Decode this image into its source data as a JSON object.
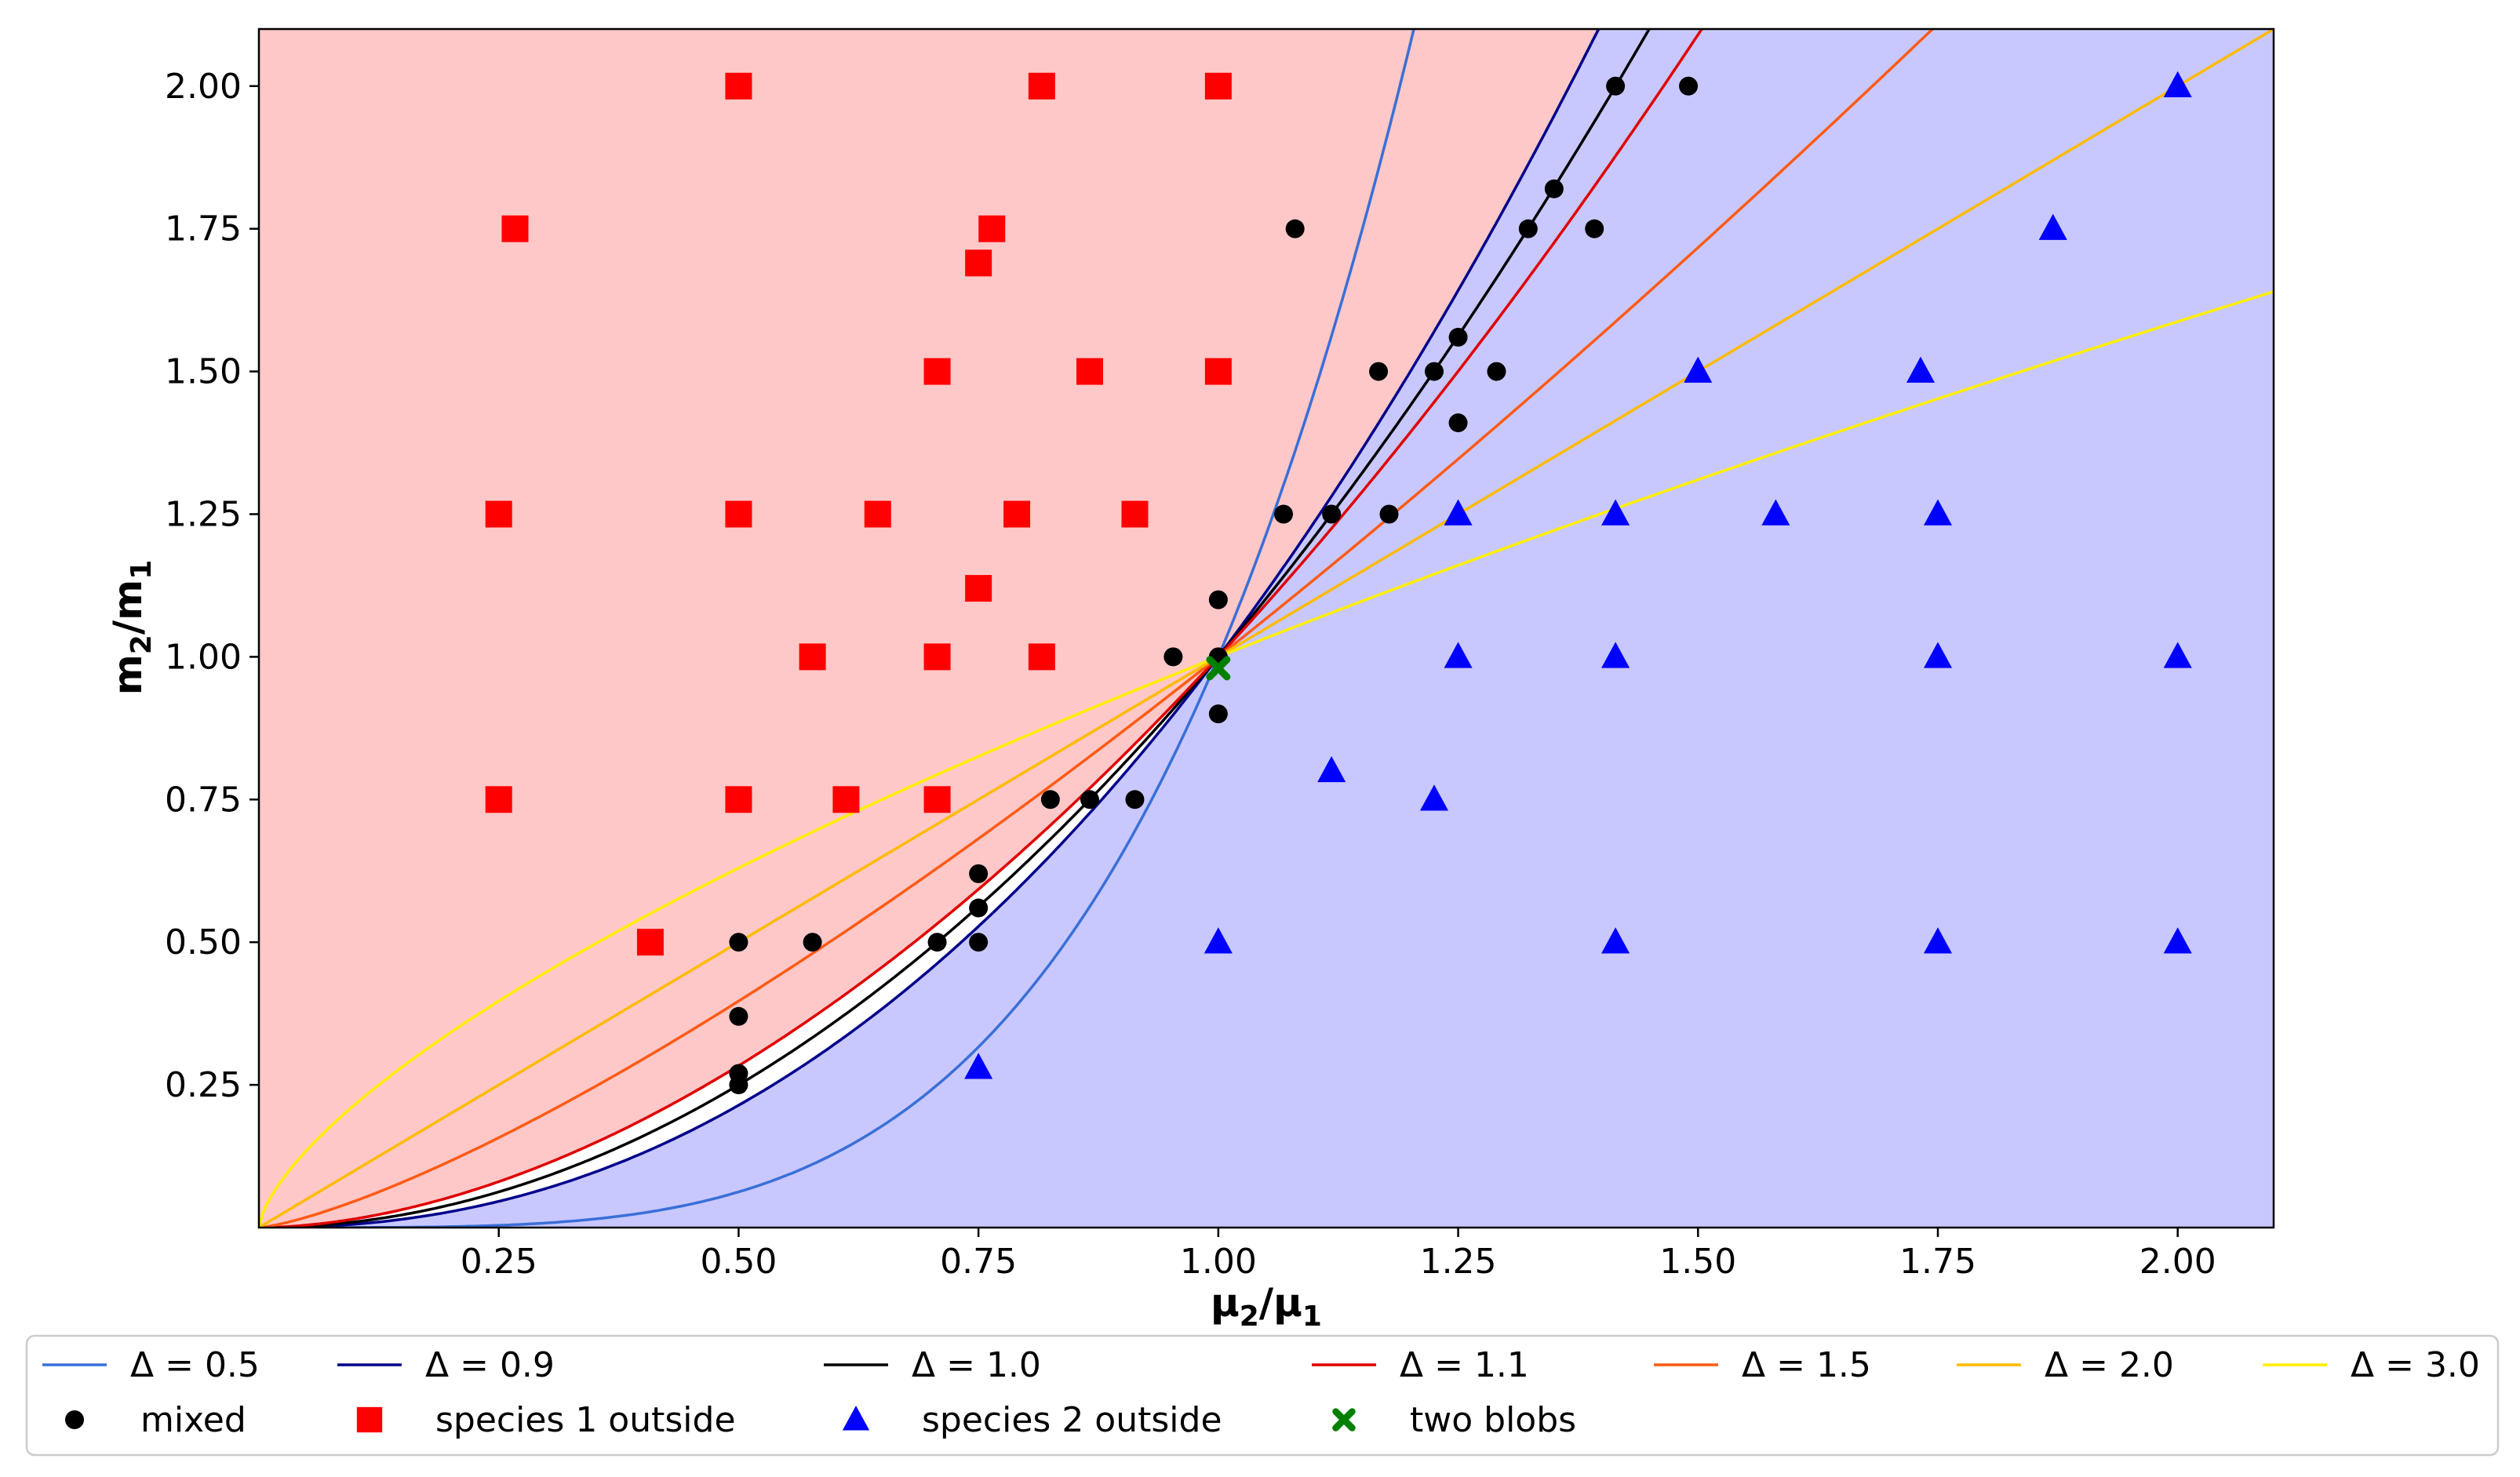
{
  "chart_data": {
    "type": "scatter",
    "title": "",
    "xlabel": "μ2/μ1",
    "ylabel": "m2/m1",
    "xlim": [
      0.0,
      2.1
    ],
    "ylim": [
      0.0,
      2.1
    ],
    "xticks": [
      0.25,
      0.5,
      0.75,
      1.0,
      1.25,
      1.5,
      1.75,
      2.0
    ],
    "yticks": [
      0.25,
      0.5,
      0.75,
      1.0,
      1.25,
      1.5,
      1.75,
      2.0
    ],
    "tick_labels_x": [
      "0.25",
      "0.50",
      "0.75",
      "1.00",
      "1.25",
      "1.50",
      "1.75",
      "2.00"
    ],
    "tick_labels_y": [
      "0.25",
      "0.50",
      "0.75",
      "1.00",
      "1.25",
      "1.50",
      "1.75",
      "2.00"
    ],
    "regions": [
      {
        "name": "species 1 outside region",
        "color": "#ffc8c8",
        "bounded_by": "Δ = 1.1"
      },
      {
        "name": "species 2 outside region",
        "color": "#c8c8ff",
        "bounded_by": "Δ = 0.9"
      }
    ],
    "curves": [
      {
        "label": "Δ = 0.5",
        "delta": 0.5,
        "color": "#3a6fd8"
      },
      {
        "label": "Δ = 0.9",
        "delta": 0.9,
        "color": "#00008b"
      },
      {
        "label": "Δ = 1.0",
        "delta": 1.0,
        "color": "#000000"
      },
      {
        "label": "Δ = 1.1",
        "delta": 1.1,
        "color": "#e00000"
      },
      {
        "label": "Δ = 1.5",
        "delta": 1.5,
        "color": "#ff5a14"
      },
      {
        "label": "Δ = 2.0",
        "delta": 2.0,
        "color": "#ffbb00"
      },
      {
        "label": "Δ = 3.0",
        "delta": 3.0,
        "color": "#ffee00"
      }
    ],
    "series": [
      {
        "name": "mixed",
        "marker": "circle",
        "color": "#000000",
        "points": [
          [
            0.5,
            0.25
          ],
          [
            0.5,
            0.27
          ],
          [
            0.5,
            0.37
          ],
          [
            0.5,
            0.5
          ],
          [
            0.577,
            0.5
          ],
          [
            0.707,
            0.5
          ],
          [
            0.75,
            0.5
          ],
          [
            0.75,
            0.56
          ],
          [
            0.75,
            0.62
          ],
          [
            0.825,
            0.75
          ],
          [
            0.866,
            0.75
          ],
          [
            0.913,
            0.75
          ],
          [
            1.0,
            0.9
          ],
          [
            1.0,
            1.0
          ],
          [
            0.953,
            1.0
          ],
          [
            1.0,
            1.1
          ],
          [
            1.068,
            1.25
          ],
          [
            1.118,
            1.25
          ],
          [
            1.178,
            1.25
          ],
          [
            1.25,
            1.41
          ],
          [
            1.167,
            1.5
          ],
          [
            1.225,
            1.5
          ],
          [
            1.29,
            1.5
          ],
          [
            1.25,
            1.56
          ],
          [
            1.08,
            1.75
          ],
          [
            1.323,
            1.75
          ],
          [
            1.392,
            1.75
          ],
          [
            1.35,
            1.82
          ],
          [
            1.414,
            2.0
          ],
          [
            1.49,
            2.0
          ]
        ]
      },
      {
        "name": "species 1 outside",
        "marker": "square",
        "color": "#ff0000",
        "points": [
          [
            0.25,
            0.75
          ],
          [
            0.25,
            1.25
          ],
          [
            0.267,
            1.75
          ],
          [
            0.408,
            0.5
          ],
          [
            0.5,
            0.75
          ],
          [
            0.5,
            1.25
          ],
          [
            0.5,
            2.0
          ],
          [
            0.577,
            1.0
          ],
          [
            0.612,
            0.75
          ],
          [
            0.645,
            1.25
          ],
          [
            0.707,
            0.75
          ],
          [
            0.707,
            1.0
          ],
          [
            0.707,
            1.5
          ],
          [
            0.75,
            1.12
          ],
          [
            0.75,
            1.69
          ],
          [
            0.764,
            1.75
          ],
          [
            0.79,
            1.25
          ],
          [
            0.816,
            1.0
          ],
          [
            0.816,
            2.0
          ],
          [
            0.866,
            1.5
          ],
          [
            0.913,
            1.25
          ],
          [
            1.0,
            1.5
          ],
          [
            1.0,
            2.0
          ]
        ]
      },
      {
        "name": "species 2 outside",
        "marker": "triangle",
        "color": "#0000ff",
        "points": [
          [
            0.75,
            0.28
          ],
          [
            1.0,
            0.5
          ],
          [
            1.118,
            0.8
          ],
          [
            1.225,
            0.75
          ],
          [
            1.25,
            1.0
          ],
          [
            1.25,
            1.25
          ],
          [
            1.414,
            0.5
          ],
          [
            1.414,
            1.0
          ],
          [
            1.414,
            1.25
          ],
          [
            1.5,
            1.5
          ],
          [
            1.581,
            1.25
          ],
          [
            1.732,
            1.5
          ],
          [
            1.75,
            0.5
          ],
          [
            1.75,
            1.0
          ],
          [
            1.75,
            1.25
          ],
          [
            1.87,
            1.75
          ],
          [
            2.0,
            0.5
          ],
          [
            2.0,
            1.0
          ],
          [
            2.0,
            2.0
          ]
        ]
      },
      {
        "name": "two blobs",
        "marker": "x",
        "color": "#008000",
        "points": [
          [
            1.0,
            0.98
          ]
        ]
      }
    ],
    "legend": {
      "placement": "bottom",
      "row1": [
        "Δ = 0.5",
        "Δ = 0.9",
        "Δ = 1.0",
        "Δ = 1.1",
        "Δ = 1.5",
        "Δ = 2.0",
        "Δ = 3.0"
      ],
      "row2": [
        "mixed",
        "species 1 outside",
        "species 2 outside",
        "two blobs"
      ]
    }
  }
}
